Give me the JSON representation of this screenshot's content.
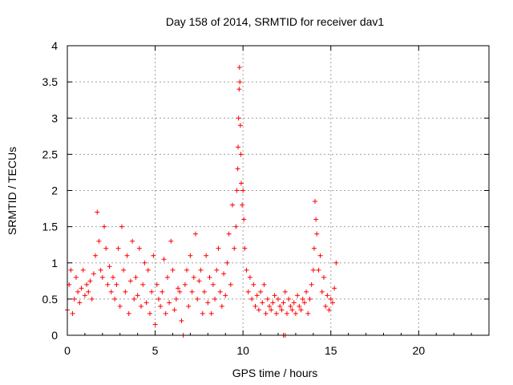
{
  "chart_data": {
    "type": "scatter",
    "title": "Day 158 of 2014, SRMTID for receiver dav1",
    "xlabel": "GPS time / hours",
    "ylabel": "SRMTID / TECUs",
    "xlim": [
      0,
      24
    ],
    "ylim": [
      0,
      4
    ],
    "xticks": [
      0,
      5,
      10,
      15,
      20
    ],
    "xtick_labels": [
      "0",
      "5",
      "10",
      "15",
      "20"
    ],
    "yticks": [
      0,
      0.5,
      1,
      1.5,
      2,
      2.5,
      3,
      3.5,
      4
    ],
    "ytick_labels": [
      "0",
      "0.5",
      "1",
      "1.5",
      "2",
      "2.5",
      "3",
      "3.5",
      "4"
    ],
    "grid": true,
    "marker": "+",
    "series": [
      {
        "name": "SRMTID",
        "color": "#ff0000",
        "x": [
          0.0,
          0.1,
          0.2,
          0.3,
          0.4,
          0.5,
          0.6,
          0.7,
          0.8,
          0.9,
          1.0,
          1.1,
          1.2,
          1.3,
          1.4,
          1.5,
          1.6,
          1.7,
          1.8,
          1.9,
          2.0,
          2.1,
          2.2,
          2.3,
          2.4,
          2.5,
          2.6,
          2.7,
          2.8,
          2.9,
          3.0,
          3.1,
          3.2,
          3.3,
          3.4,
          3.5,
          3.6,
          3.7,
          3.8,
          3.9,
          4.0,
          4.1,
          4.2,
          4.3,
          4.4,
          4.5,
          4.6,
          4.7,
          4.8,
          4.9,
          5.0,
          5.1,
          5.2,
          5.3,
          5.4,
          5.5,
          5.6,
          5.7,
          5.8,
          5.9,
          6.0,
          6.1,
          6.2,
          6.3,
          6.4,
          6.5,
          6.7,
          6.8,
          6.9,
          7.0,
          7.1,
          7.2,
          7.3,
          7.4,
          7.5,
          7.6,
          7.7,
          7.8,
          7.9,
          8.0,
          8.1,
          8.2,
          8.3,
          8.4,
          8.5,
          8.6,
          8.7,
          8.8,
          8.9,
          9.0,
          9.1,
          9.2,
          9.3,
          9.4,
          9.5,
          9.6,
          9.65,
          9.7,
          9.72,
          9.75,
          9.78,
          9.8,
          9.82,
          9.85,
          9.88,
          9.9,
          9.95,
          10.0,
          10.05,
          10.1,
          10.2,
          10.3,
          10.4,
          10.5,
          10.6,
          10.7,
          10.8,
          10.9,
          11.0,
          11.1,
          11.2,
          11.3,
          11.4,
          11.5,
          11.6,
          11.7,
          11.8,
          11.9,
          12.0,
          12.1,
          12.2,
          12.3,
          12.4,
          12.5,
          12.6,
          12.7,
          12.8,
          12.9,
          13.0,
          13.1,
          13.2,
          13.3,
          13.4,
          13.5,
          13.6,
          13.7,
          13.8,
          13.9,
          14.0,
          14.05,
          14.1,
          14.15,
          14.2,
          14.3,
          14.4,
          14.5,
          14.6,
          14.7,
          14.8,
          14.9,
          15.0,
          15.1,
          15.2,
          15.3,
          6.6,
          12.3,
          12.4
        ],
        "y": [
          0.35,
          0.7,
          0.9,
          0.3,
          0.5,
          0.8,
          0.6,
          0.45,
          0.65,
          0.9,
          0.55,
          0.7,
          0.6,
          0.75,
          0.5,
          0.85,
          1.1,
          1.7,
          1.3,
          0.9,
          0.8,
          1.5,
          1.2,
          0.7,
          0.95,
          0.6,
          0.8,
          0.5,
          0.7,
          1.2,
          0.4,
          1.5,
          0.9,
          0.6,
          1.1,
          0.3,
          0.75,
          1.3,
          0.5,
          0.8,
          0.55,
          1.2,
          0.4,
          0.7,
          1.0,
          0.45,
          0.9,
          0.3,
          0.6,
          1.1,
          0.15,
          0.7,
          0.5,
          0.4,
          0.6,
          1.05,
          0.3,
          0.8,
          0.45,
          1.3,
          0.9,
          0.35,
          0.5,
          0.65,
          0.6,
          0.2,
          0.7,
          0.9,
          0.4,
          1.1,
          0.6,
          0.8,
          1.4,
          0.5,
          0.75,
          0.9,
          0.3,
          0.6,
          1.1,
          0.45,
          0.8,
          0.3,
          0.7,
          0.5,
          0.9,
          1.2,
          0.6,
          0.4,
          0.85,
          0.55,
          1.0,
          1.4,
          0.7,
          1.8,
          1.2,
          1.5,
          2.0,
          2.3,
          2.6,
          3.0,
          3.4,
          3.7,
          3.5,
          2.9,
          2.5,
          2.1,
          1.8,
          2.0,
          1.6,
          1.2,
          0.9,
          0.6,
          0.8,
          0.5,
          0.7,
          0.4,
          0.55,
          0.35,
          0.6,
          0.45,
          0.7,
          0.3,
          0.5,
          0.4,
          0.35,
          0.45,
          0.55,
          0.3,
          0.5,
          0.4,
          0.35,
          0.45,
          0.6,
          0.3,
          0.5,
          0.4,
          0.35,
          0.45,
          0.3,
          0.55,
          0.4,
          0.35,
          0.5,
          0.45,
          0.6,
          0.3,
          0.5,
          0.7,
          0.9,
          1.2,
          1.85,
          1.6,
          1.4,
          0.9,
          1.1,
          0.6,
          0.8,
          0.4,
          0.55,
          0.35,
          0.5,
          0.45,
          0.65,
          1.0,
          0.0,
          0.0,
          0.0
        ]
      }
    ]
  }
}
